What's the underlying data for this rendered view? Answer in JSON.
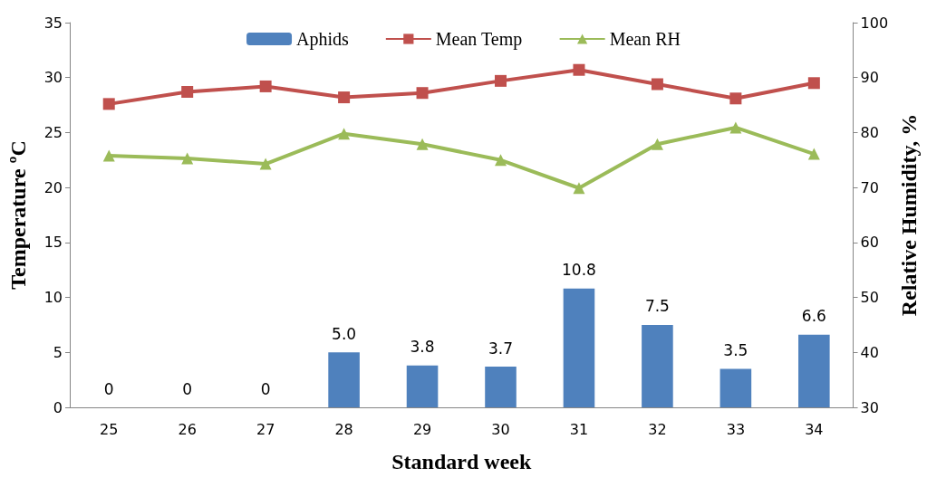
{
  "chart_data": {
    "type": "bar",
    "xlabel": "Standard week",
    "ylabel": "Temperature ºC",
    "y2label": "Relative Humidity, %",
    "categories": [
      "25",
      "26",
      "27",
      "28",
      "29",
      "30",
      "31",
      "32",
      "33",
      "34"
    ],
    "series": [
      {
        "name": "Aphids",
        "color": "#4f81bd",
        "values": [
          0,
          0,
          0,
          5.0,
          3.8,
          3.7,
          10.8,
          7.5,
          3.5,
          6.6
        ],
        "value_labels": [
          "0",
          "0",
          "0",
          "5.0",
          "3.8",
          "3.7",
          "10.8",
          "7.5",
          "3.5",
          "6.6"
        ]
      },
      {
        "name": "Mean Temp",
        "type": "line",
        "color": "#c0504d",
        "marker": "square",
        "values": [
          27.6,
          28.7,
          29.2,
          28.2,
          28.6,
          29.7,
          30.7,
          29.4,
          28.1,
          29.5
        ]
      },
      {
        "name": "Mean RH",
        "type": "line",
        "axis": "y2",
        "color": "#9bbb59",
        "marker": "triangle",
        "values": [
          75.8,
          75.3,
          74.3,
          79.8,
          77.9,
          75.0,
          69.9,
          77.9,
          80.9,
          76.1
        ]
      }
    ],
    "ylim": [
      0,
      35
    ],
    "yticks": [
      0,
      5,
      10,
      15,
      20,
      25,
      30,
      35
    ],
    "y2lim": [
      30,
      100
    ],
    "y2ticks": [
      30,
      40,
      50,
      60,
      70,
      80,
      90,
      100
    ],
    "grid": false,
    "legend": "top"
  }
}
